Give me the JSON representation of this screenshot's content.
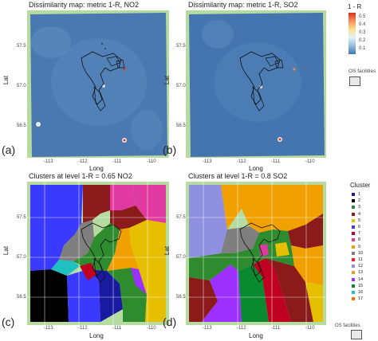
{
  "panels": {
    "a": {
      "title": "Dissimilarity map: metric 1-R, NO2",
      "label": "(a)"
    },
    "b": {
      "title": "Dissimilarity map: metric 1-R, SO2",
      "label": "(b)"
    },
    "c": {
      "title": "Clusters at level 1-R = 0.65 NO2",
      "label": "(c)"
    },
    "d": {
      "title": "Clusters at level 1-R = 0.8 SO2",
      "label": "(d)"
    }
  },
  "axes": {
    "x_label": "Long",
    "y_label": "Lat",
    "x_ticks": [
      "-113",
      "-112",
      "-111",
      "-110"
    ],
    "y_ticks": [
      "57.5",
      "57.0",
      "56.5"
    ]
  },
  "colorbar": {
    "title": "1 - R",
    "ticks": [
      "0.5",
      "0.4",
      "0.3",
      "0.2",
      "0.1"
    ],
    "range": [
      0.05,
      0.55
    ]
  },
  "facilities_legend": {
    "label": "OS facilities"
  },
  "cluster_legend": {
    "title": "Cluster",
    "items": [
      {
        "label": "1",
        "color": "#1a1aa0"
      },
      {
        "label": "2",
        "color": "#000000"
      },
      {
        "label": "3",
        "color": "#2e8b2e"
      },
      {
        "label": "4",
        "color": "#8b1a1a"
      },
      {
        "label": "5",
        "color": "#e6c000"
      },
      {
        "label": "6",
        "color": "#3a3aff"
      },
      {
        "label": "7",
        "color": "#c00020"
      },
      {
        "label": "8",
        "color": "#e03aa0"
      },
      {
        "label": "9",
        "color": "#f0a000"
      },
      {
        "label": "10",
        "color": "#7f7f7f"
      },
      {
        "label": "11",
        "color": "#ff2020"
      },
      {
        "label": "12",
        "color": "#9090e0"
      },
      {
        "label": "13",
        "color": "#e8a020"
      },
      {
        "label": "14",
        "color": "#9b30ff"
      },
      {
        "label": "15",
        "color": "#0a8a30"
      },
      {
        "label": "16",
        "color": "#20c0c0"
      },
      {
        "label": "17",
        "color": "#ff6a00"
      }
    ]
  }
}
